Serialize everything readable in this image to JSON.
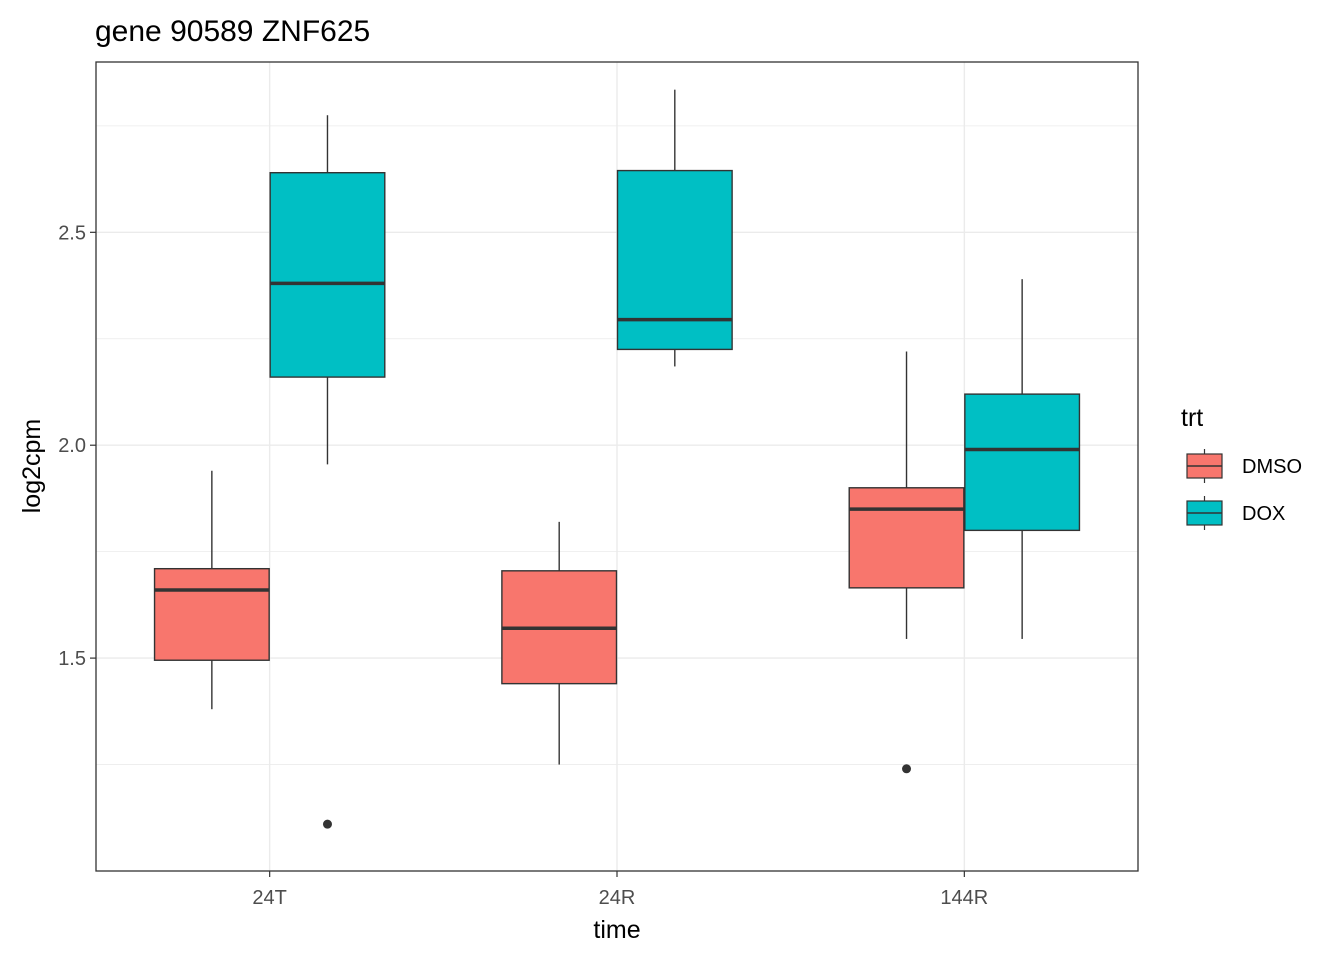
{
  "chart_data": {
    "type": "boxplot",
    "title": "gene 90589 ZNF625",
    "xlabel": "time",
    "ylabel": "log2cpm",
    "categories": [
      "24T",
      "24R",
      "144R"
    ],
    "ylim": [
      1.0,
      2.9
    ],
    "yticks": [
      1.5,
      2.0,
      2.5
    ],
    "ytick_labels": [
      "1.5",
      "2.0",
      "2.5"
    ],
    "grid": true,
    "legend": {
      "title": "trt",
      "position": "right",
      "entries": [
        {
          "label": "DMSO",
          "color": "#F8766D"
        },
        {
          "label": "DOX",
          "color": "#00BFC4"
        }
      ]
    },
    "series": [
      {
        "name": "DMSO",
        "color": "#F8766D",
        "boxes": [
          {
            "category": "24T",
            "whisker_low": 1.38,
            "q1": 1.495,
            "median": 1.66,
            "q3": 1.71,
            "whisker_high": 1.94,
            "outliers": []
          },
          {
            "category": "24R",
            "whisker_low": 1.25,
            "q1": 1.44,
            "median": 1.57,
            "q3": 1.705,
            "whisker_high": 1.82,
            "outliers": []
          },
          {
            "category": "144R",
            "whisker_low": 1.545,
            "q1": 1.665,
            "median": 1.85,
            "q3": 1.9,
            "whisker_high": 2.22,
            "outliers": [
              1.24
            ]
          }
        ]
      },
      {
        "name": "DOX",
        "color": "#00BFC4",
        "boxes": [
          {
            "category": "24T",
            "whisker_low": 1.955,
            "q1": 2.16,
            "median": 2.38,
            "q3": 2.64,
            "whisker_high": 2.775,
            "outliers": [
              1.11
            ]
          },
          {
            "category": "24R",
            "whisker_low": 2.185,
            "q1": 2.225,
            "median": 2.295,
            "q3": 2.645,
            "whisker_high": 2.835,
            "outliers": []
          },
          {
            "category": "144R",
            "whisker_low": 1.545,
            "q1": 1.8,
            "median": 1.99,
            "q3": 2.12,
            "whisker_high": 2.39,
            "outliers": []
          }
        ]
      }
    ]
  }
}
